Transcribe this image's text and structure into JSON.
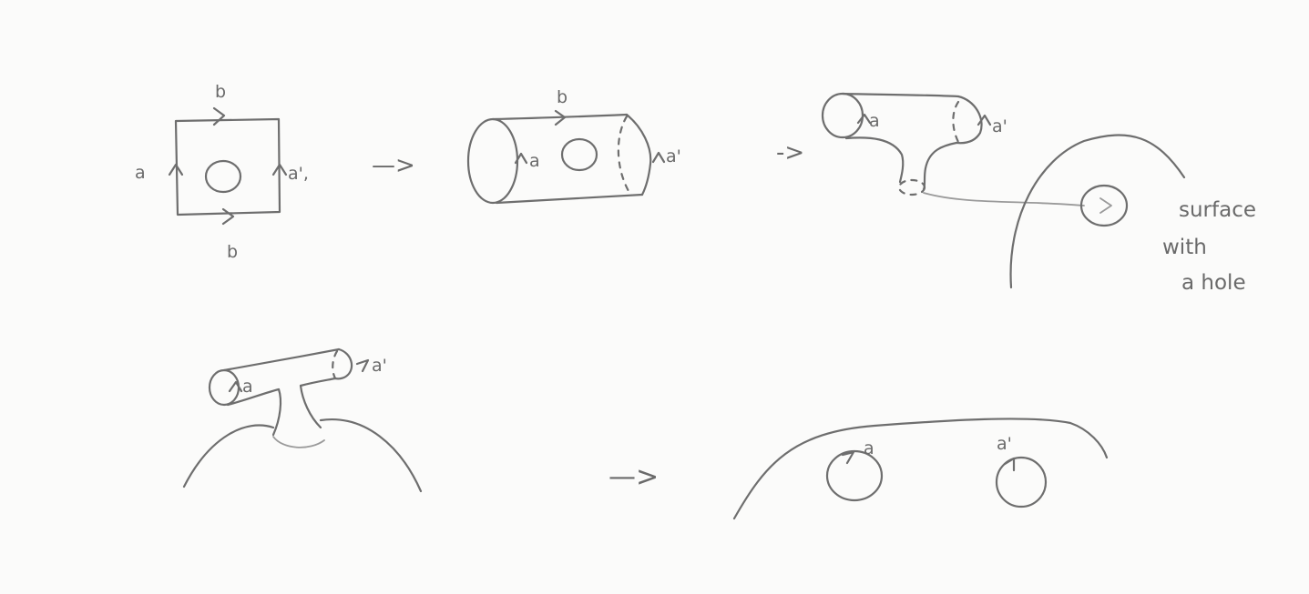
{
  "labels": {
    "b": "b",
    "a": "a",
    "a_prime": "a'",
    "a_prime_comma": "a',",
    "arrow": "—>",
    "short_arrow": "->"
  },
  "note": {
    "line1": "surface",
    "line2": "with",
    "line3": "a hole"
  },
  "colors": {
    "ink": "#6e6e6e",
    "ink_light": "#9a9a9a",
    "paper": "#fbfbfa"
  }
}
